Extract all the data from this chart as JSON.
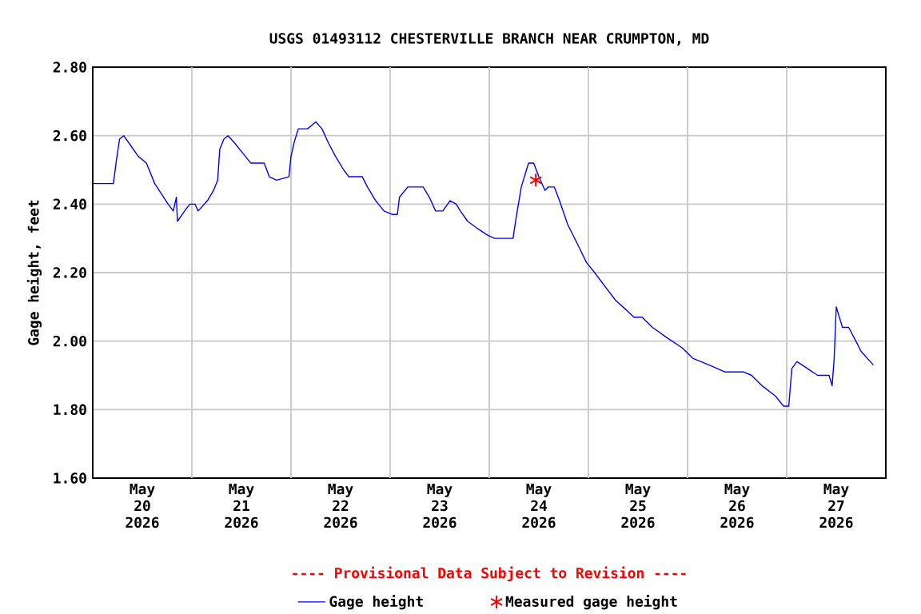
{
  "chart_data": {
    "type": "line",
    "title": "USGS 01493112 CHESTERVILLE BRANCH NEAR CRUMPTON, MD",
    "ylabel": "Gage height, feet",
    "annotations": [
      "---- Provisional Data Subject to Revision ----"
    ],
    "xlim": [
      "2026-05-20T00:00",
      "2026-05-28T00:00"
    ],
    "xticks": [
      {
        "value": "2026-05-20T12:00",
        "label": "May 20 2026"
      },
      {
        "value": "2026-05-21T12:00",
        "label": "May 21 2026"
      },
      {
        "value": "2026-05-22T12:00",
        "label": "May 22 2026"
      },
      {
        "value": "2026-05-23T12:00",
        "label": "May 23 2026"
      },
      {
        "value": "2026-05-24T12:00",
        "label": "May 24 2026"
      },
      {
        "value": "2026-05-25T12:00",
        "label": "May 25 2026"
      },
      {
        "value": "2026-05-26T12:00",
        "label": "May 26 2026"
      },
      {
        "value": "2026-05-27T12:00",
        "label": "May 27 2026"
      },
      {
        "value": "2026-05-21T00:00",
        "label": null
      },
      {
        "value": "2026-05-22T00:00",
        "label": null
      },
      {
        "value": "2026-05-23T00:00",
        "label": null
      },
      {
        "value": "2026-05-24T00:00",
        "label": null
      },
      {
        "value": "2026-05-25T00:00",
        "label": null
      },
      {
        "value": "2026-05-26T00:00",
        "label": null
      },
      {
        "value": "2026-05-27T00:00",
        "label": null
      }
    ],
    "ylim": [
      1.6,
      2.8
    ],
    "yticks": [
      {
        "value": 1.6,
        "label": "1.60"
      },
      {
        "value": 1.8,
        "label": "1.80"
      },
      {
        "value": 2.0,
        "label": "2.00"
      },
      {
        "value": 2.2,
        "label": "2.20"
      },
      {
        "value": 2.4,
        "label": "2.40"
      },
      {
        "value": 2.6,
        "label": "2.60"
      },
      {
        "value": 2.8,
        "label": "2.80"
      }
    ],
    "grid": true,
    "legend": "bottom",
    "series": [
      {
        "name": "Gage height",
        "color": "#0000ff",
        "marker": "none",
        "x": [
          "2026-05-20T00:00",
          "2026-05-20T05:00",
          "2026-05-20T05:45",
          "2026-05-20T06:30",
          "2026-05-20T07:30",
          "2026-05-20T09:15",
          "2026-05-20T11:00",
          "2026-05-20T13:00",
          "2026-05-20T15:00",
          "2026-05-20T18:15",
          "2026-05-20T19:30",
          "2026-05-20T20:15",
          "2026-05-20T20:30",
          "2026-05-20T22:15",
          "2026-05-20T23:30",
          "2026-05-21T00:45",
          "2026-05-21T01:30",
          "2026-05-21T03:45",
          "2026-05-21T05:15",
          "2026-05-21T06:15",
          "2026-05-21T06:45",
          "2026-05-21T07:45",
          "2026-05-21T08:45",
          "2026-05-21T10:15",
          "2026-05-21T12:15",
          "2026-05-21T14:15",
          "2026-05-21T17:30",
          "2026-05-21T18:45",
          "2026-05-21T20:30",
          "2026-05-21T23:30",
          "2026-05-22T00:00",
          "2026-05-22T00:45",
          "2026-05-22T01:45",
          "2026-05-22T04:00",
          "2026-05-22T05:00",
          "2026-05-22T06:00",
          "2026-05-22T07:30",
          "2026-05-22T09:00",
          "2026-05-22T10:45",
          "2026-05-22T12:45",
          "2026-05-22T14:00",
          "2026-05-22T17:15",
          "2026-05-22T18:30",
          "2026-05-22T20:30",
          "2026-05-22T22:30",
          "2026-05-23T00:30",
          "2026-05-23T01:45",
          "2026-05-23T02:15",
          "2026-05-23T04:15",
          "2026-05-23T08:00",
          "2026-05-23T09:30",
          "2026-05-23T11:00",
          "2026-05-23T12:45",
          "2026-05-23T14:30",
          "2026-05-23T16:00",
          "2026-05-23T17:00",
          "2026-05-23T18:45",
          "2026-05-23T21:00",
          "2026-05-23T23:30",
          "2026-05-24T01:15",
          "2026-05-24T03:30",
          "2026-05-24T05:45",
          "2026-05-24T06:30",
          "2026-05-24T07:45",
          "2026-05-24T09:30",
          "2026-05-24T10:45",
          "2026-05-24T12:00",
          "2026-05-24T13:30",
          "2026-05-24T14:15",
          "2026-05-24T15:45",
          "2026-05-24T17:00",
          "2026-05-24T19:00",
          "2026-05-24T21:30",
          "2026-05-24T23:30",
          "2026-05-25T01:30",
          "2026-05-25T04:00",
          "2026-05-25T06:30",
          "2026-05-25T09:15",
          "2026-05-25T11:00",
          "2026-05-25T13:00",
          "2026-05-25T15:30",
          "2026-05-25T19:00",
          "2026-05-25T22:45",
          "2026-05-26T01:15",
          "2026-05-26T05:15",
          "2026-05-26T09:00",
          "2026-05-26T13:30",
          "2026-05-26T15:30",
          "2026-05-26T18:00",
          "2026-05-26T21:15",
          "2026-05-26T23:15",
          "2026-05-27T00:30",
          "2026-05-27T01:15",
          "2026-05-27T02:30",
          "2026-05-27T05:00",
          "2026-05-27T07:30",
          "2026-05-27T10:15",
          "2026-05-27T11:00",
          "2026-05-27T11:30",
          "2026-05-27T12:00",
          "2026-05-27T13:30",
          "2026-05-27T15:00",
          "2026-05-27T16:45",
          "2026-05-27T18:00",
          "2026-05-27T21:00"
        ],
        "values": [
          2.46,
          2.46,
          2.53,
          2.59,
          2.6,
          2.57,
          2.54,
          2.52,
          2.46,
          2.4,
          2.38,
          2.42,
          2.35,
          2.38,
          2.4,
          2.4,
          2.38,
          2.41,
          2.44,
          2.47,
          2.56,
          2.59,
          2.6,
          2.58,
          2.55,
          2.52,
          2.52,
          2.48,
          2.47,
          2.48,
          2.54,
          2.58,
          2.62,
          2.62,
          2.63,
          2.64,
          2.62,
          2.58,
          2.54,
          2.5,
          2.48,
          2.48,
          2.45,
          2.41,
          2.38,
          2.37,
          2.37,
          2.42,
          2.45,
          2.45,
          2.42,
          2.38,
          2.38,
          2.41,
          2.4,
          2.38,
          2.35,
          2.33,
          2.31,
          2.3,
          2.3,
          2.3,
          2.36,
          2.45,
          2.52,
          2.52,
          2.48,
          2.44,
          2.45,
          2.45,
          2.41,
          2.34,
          2.28,
          2.23,
          2.2,
          2.16,
          2.12,
          2.09,
          2.07,
          2.07,
          2.04,
          2.01,
          1.98,
          1.95,
          1.93,
          1.91,
          1.91,
          1.9,
          1.87,
          1.84,
          1.81,
          1.81,
          1.92,
          1.94,
          1.92,
          1.9,
          1.9,
          1.87,
          1.95,
          2.1,
          2.04,
          2.04,
          2.0,
          1.97,
          1.93
        ]
      },
      {
        "name": "Measured gage height",
        "type": "scatter",
        "color": "#ff0000",
        "marker": "cross",
        "x": [
          "2026-05-24T11:15"
        ],
        "values": [
          2.47
        ]
      }
    ]
  }
}
